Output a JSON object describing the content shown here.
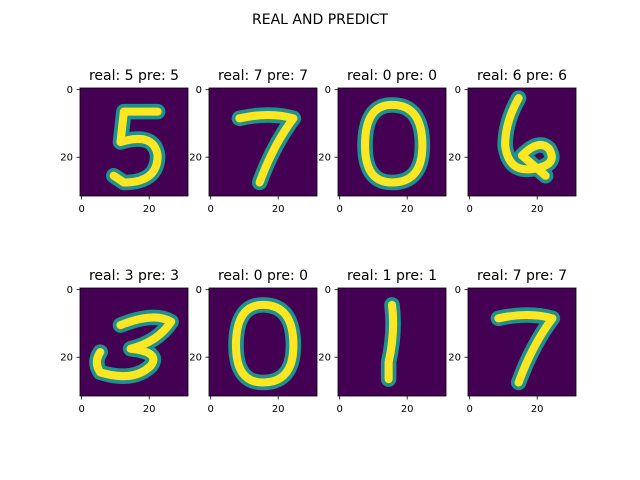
{
  "figure": {
    "suptitle": "REAL AND PREDICT"
  },
  "chart_data": {
    "type": "image-grid",
    "title": "REAL AND PREDICT",
    "rows": 2,
    "cols": 4,
    "xticks": [
      0,
      20
    ],
    "yticks": [
      0,
      20
    ],
    "image_size": 32,
    "colors": {
      "background": "#440154",
      "mid": "#21918c",
      "foreground": "#fde725"
    },
    "panels": [
      {
        "title": "real: 5 pre: 5",
        "real": 5,
        "predicted": 5,
        "glyph": "5"
      },
      {
        "title": "real: 7 pre: 7",
        "real": 7,
        "predicted": 7,
        "glyph": "7"
      },
      {
        "title": "real: 0 pre: 0",
        "real": 0,
        "predicted": 0,
        "glyph": "0"
      },
      {
        "title": "real: 6 pre: 6",
        "real": 6,
        "predicted": 6,
        "glyph": "6"
      },
      {
        "title": "real: 3 pre: 3",
        "real": 3,
        "predicted": 3,
        "glyph": "3"
      },
      {
        "title": "real: 0 pre: 0",
        "real": 0,
        "predicted": 0,
        "glyph": "0"
      },
      {
        "title": "real: 1 pre: 1",
        "real": 1,
        "predicted": 1,
        "glyph": "1"
      },
      {
        "title": "real: 7 pre: 7",
        "real": 7,
        "predicted": 7,
        "glyph": "7"
      }
    ]
  }
}
